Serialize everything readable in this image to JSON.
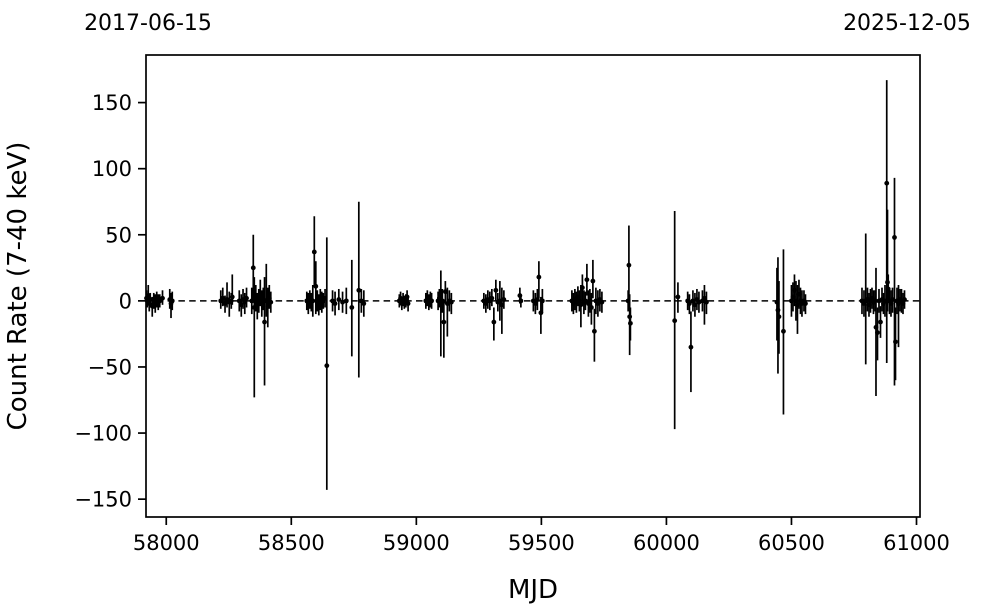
{
  "figure": {
    "background_color": "#ffffff",
    "foreground_color": "#000000"
  },
  "chart_data": {
    "type": "scatter",
    "subtype": "errorbar-lightcurve",
    "title_left": "2017-06-15",
    "title_right": "2025-12-05",
    "xlabel": "MJD",
    "ylabel": "Count Rate (7-40 keV)",
    "xlim": [
      57919,
      61014
    ],
    "ylim": [
      -163.5,
      186
    ],
    "xticks": [
      58000,
      58500,
      59000,
      59500,
      60000,
      60500,
      61000
    ],
    "yticks": [
      150,
      100,
      50,
      0,
      -50,
      -100,
      -150
    ],
    "grid": false,
    "legend_position": "none",
    "marker": {
      "shape": "circle",
      "color": "#000000"
    },
    "errorbar_color": "#000000",
    "zero_line": {
      "y": 0,
      "style": "dashed",
      "color": "#000000"
    },
    "points_format": [
      "mjd",
      "rate",
      "err_low",
      "err_high"
    ],
    "points": [
      [
        57921,
        2,
        -4,
        8
      ],
      [
        57924,
        0,
        -5,
        5
      ],
      [
        57928,
        4,
        -2,
        12
      ],
      [
        57932,
        -2,
        -8,
        4
      ],
      [
        57936,
        1,
        -4,
        6
      ],
      [
        57944,
        -4,
        -12,
        3
      ],
      [
        57950,
        0,
        -6,
        6
      ],
      [
        57956,
        -2,
        -9,
        5
      ],
      [
        57962,
        1,
        -5,
        7
      ],
      [
        57968,
        -1,
        -7,
        5
      ],
      [
        57974,
        0,
        -5,
        5
      ],
      [
        57985,
        2,
        -3,
        8
      ],
      [
        58014,
        1,
        -6,
        9
      ],
      [
        58019,
        -2,
        -13,
        6
      ],
      [
        58024,
        0,
        -7,
        7
      ],
      [
        58218,
        0,
        -6,
        8
      ],
      [
        58226,
        2,
        -4,
        10
      ],
      [
        58235,
        -2,
        -9,
        4
      ],
      [
        58243,
        1,
        -5,
        14
      ],
      [
        58252,
        -1,
        -12,
        7
      ],
      [
        58260,
        0,
        -6,
        6
      ],
      [
        58264,
        3,
        -3,
        20
      ],
      [
        58292,
        0,
        -8,
        8
      ],
      [
        58300,
        -3,
        -12,
        5
      ],
      [
        58307,
        1,
        -6,
        9
      ],
      [
        58314,
        -1,
        -10,
        6
      ],
      [
        58321,
        2,
        -5,
        10
      ],
      [
        58342,
        0,
        -10,
        10
      ],
      [
        58348,
        25,
        0,
        50
      ],
      [
        58352,
        -5,
        -73,
        18
      ],
      [
        58358,
        2,
        -8,
        12
      ],
      [
        58364,
        -3,
        -14,
        6
      ],
      [
        58370,
        0,
        -9,
        9
      ],
      [
        58376,
        4,
        -4,
        16
      ],
      [
        58382,
        -2,
        -12,
        8
      ],
      [
        58388,
        1,
        -7,
        10
      ],
      [
        58393,
        -16,
        -64,
        18
      ],
      [
        58400,
        0,
        -12,
        28
      ],
      [
        58406,
        -4,
        -20,
        10
      ],
      [
        58412,
        2,
        -6,
        12
      ],
      [
        58418,
        -1,
        -9,
        7
      ],
      [
        58562,
        0,
        -7,
        7
      ],
      [
        58568,
        -2,
        -10,
        6
      ],
      [
        58574,
        1,
        -6,
        8
      ],
      [
        58580,
        -1,
        -8,
        6
      ],
      [
        58586,
        0,
        -12,
        12
      ],
      [
        58592,
        37,
        11,
        64
      ],
      [
        58598,
        11,
        -10,
        30
      ],
      [
        58604,
        0,
        -8,
        8
      ],
      [
        58610,
        -3,
        -11,
        5
      ],
      [
        58616,
        1,
        -7,
        9
      ],
      [
        58622,
        -1,
        -9,
        7
      ],
      [
        58628,
        0,
        -6,
        6
      ],
      [
        58635,
        2,
        -5,
        9
      ],
      [
        58642,
        -49,
        -143,
        48
      ],
      [
        58665,
        0,
        -8,
        8
      ],
      [
        58675,
        -2,
        -11,
        7
      ],
      [
        58690,
        1,
        -7,
        9
      ],
      [
        58705,
        -1,
        -9,
        7
      ],
      [
        58720,
        0,
        -10,
        10
      ],
      [
        58742,
        -5,
        -42,
        31
      ],
      [
        58770,
        8,
        -58,
        75
      ],
      [
        58780,
        0,
        -9,
        9
      ],
      [
        58790,
        -2,
        -12,
        8
      ],
      [
        58932,
        0,
        -5,
        5
      ],
      [
        58937,
        2,
        -3,
        7
      ],
      [
        58942,
        -2,
        -7,
        3
      ],
      [
        58947,
        1,
        -4,
        6
      ],
      [
        58952,
        -1,
        -6,
        4
      ],
      [
        58958,
        0,
        -5,
        5
      ],
      [
        58963,
        3,
        -2,
        8
      ],
      [
        58967,
        -2,
        -8,
        4
      ],
      [
        59038,
        0,
        -6,
        6
      ],
      [
        59044,
        2,
        -4,
        8
      ],
      [
        59050,
        -1,
        -7,
        5
      ],
      [
        59056,
        1,
        -5,
        7
      ],
      [
        59061,
        0,
        -6,
        6
      ],
      [
        59087,
        0,
        -7,
        7
      ],
      [
        59092,
        2,
        -5,
        9
      ],
      [
        59098,
        -3,
        -42,
        23
      ],
      [
        59104,
        0,
        -9,
        9
      ],
      [
        59110,
        -16,
        -43,
        0
      ],
      [
        59116,
        7,
        -2,
        15
      ],
      [
        59124,
        -2,
        -27,
        10
      ],
      [
        59132,
        0,
        -8,
        8
      ],
      [
        59140,
        -1,
        -10,
        6
      ],
      [
        59270,
        0,
        -6,
        6
      ],
      [
        59278,
        -2,
        -9,
        5
      ],
      [
        59286,
        1,
        -6,
        8
      ],
      [
        59294,
        0,
        -7,
        7
      ],
      [
        59302,
        2,
        -4,
        9
      ],
      [
        59310,
        -16,
        -30,
        -5
      ],
      [
        59318,
        8,
        0,
        16
      ],
      [
        59326,
        -1,
        -8,
        6
      ],
      [
        59334,
        0,
        -15,
        15
      ],
      [
        59342,
        -3,
        -25,
        10
      ],
      [
        59350,
        1,
        -6,
        8
      ],
      [
        59414,
        4,
        -2,
        10
      ],
      [
        59418,
        0,
        -5,
        5
      ],
      [
        59468,
        0,
        -8,
        8
      ],
      [
        59476,
        -2,
        -10,
        6
      ],
      [
        59484,
        1,
        -7,
        9
      ],
      [
        59490,
        18,
        2,
        30
      ],
      [
        59498,
        -9,
        -25,
        3
      ],
      [
        59504,
        0,
        -9,
        9
      ],
      [
        59622,
        0,
        -8,
        8
      ],
      [
        59628,
        -2,
        -10,
        6
      ],
      [
        59634,
        1,
        -7,
        9
      ],
      [
        59640,
        -1,
        -9,
        7
      ],
      [
        59646,
        3,
        -4,
        11
      ],
      [
        59652,
        0,
        -8,
        8
      ],
      [
        59658,
        -3,
        -20,
        12
      ],
      [
        59664,
        10,
        0,
        20
      ],
      [
        59670,
        -1,
        -10,
        8
      ],
      [
        59676,
        0,
        -7,
        7
      ],
      [
        59682,
        16,
        4,
        28
      ],
      [
        59688,
        -2,
        -12,
        8
      ],
      [
        59694,
        0,
        -9,
        9
      ],
      [
        59700,
        -5,
        -18,
        6
      ],
      [
        59706,
        15,
        2,
        31
      ],
      [
        59712,
        -23,
        -46,
        -6
      ],
      [
        59718,
        0,
        -10,
        10
      ],
      [
        59726,
        -2,
        -12,
        8
      ],
      [
        59734,
        1,
        -8,
        9
      ],
      [
        59742,
        -1,
        -9,
        7
      ],
      [
        59847,
        0,
        -8,
        8
      ],
      [
        59850,
        27,
        -5,
        57
      ],
      [
        59853,
        -12,
        -41,
        5
      ],
      [
        59856,
        -17,
        -30,
        -5
      ],
      [
        60033,
        -15,
        -97,
        68
      ],
      [
        60046,
        3,
        -9,
        14
      ],
      [
        60085,
        0,
        -7,
        7
      ],
      [
        60092,
        -2,
        -10,
        5
      ],
      [
        60098,
        -35,
        -69,
        -8
      ],
      [
        60106,
        0,
        -8,
        8
      ],
      [
        60114,
        -3,
        -12,
        6
      ],
      [
        60122,
        1,
        -7,
        9
      ],
      [
        60130,
        -1,
        -9,
        7
      ],
      [
        60144,
        0,
        -8,
        8
      ],
      [
        60152,
        2,
        -18,
        12
      ],
      [
        60160,
        -1,
        -10,
        7
      ],
      [
        60442,
        -1,
        -30,
        25
      ],
      [
        60446,
        -7,
        -55,
        33
      ],
      [
        60450,
        -12,
        -40,
        15
      ],
      [
        60468,
        -23,
        -86,
        39
      ],
      [
        60500,
        0,
        -12,
        12
      ],
      [
        60506,
        3,
        -8,
        14
      ],
      [
        60512,
        8,
        -4,
        20
      ],
      [
        60518,
        0,
        -15,
        15
      ],
      [
        60524,
        -3,
        -25,
        12
      ],
      [
        60530,
        5,
        -6,
        16
      ],
      [
        60536,
        0,
        -10,
        10
      ],
      [
        60542,
        -2,
        -12,
        8
      ],
      [
        60550,
        0,
        -8,
        8
      ],
      [
        60556,
        -2,
        -10,
        5
      ],
      [
        60782,
        0,
        -10,
        10
      ],
      [
        60790,
        -2,
        -12,
        8
      ],
      [
        60797,
        0,
        -48,
        51
      ],
      [
        60804,
        1,
        -8,
        10
      ],
      [
        60810,
        -3,
        -12,
        6
      ],
      [
        60816,
        0,
        -9,
        9
      ],
      [
        60822,
        2,
        -6,
        10
      ],
      [
        60828,
        -1,
        -10,
        8
      ],
      [
        60834,
        0,
        -8,
        8
      ],
      [
        60838,
        -20,
        -72,
        25
      ],
      [
        60844,
        -24,
        -45,
        -5
      ],
      [
        60850,
        0,
        -9,
        9
      ],
      [
        60856,
        -16,
        -28,
        -4
      ],
      [
        60862,
        1,
        -8,
        10
      ],
      [
        60868,
        -2,
        -10,
        6
      ],
      [
        60874,
        0,
        -12,
        12
      ],
      [
        60881,
        89,
        -47,
        167
      ],
      [
        60884,
        14,
        -8,
        69
      ],
      [
        60887,
        9,
        0,
        20
      ],
      [
        60892,
        0,
        -10,
        10
      ],
      [
        60898,
        -2,
        -12,
        8
      ],
      [
        60904,
        1,
        -9,
        10
      ],
      [
        60912,
        48,
        -64,
        93
      ],
      [
        60916,
        -31,
        -60,
        -5
      ],
      [
        60922,
        0,
        -10,
        10
      ],
      [
        60928,
        -2,
        -35,
        12
      ],
      [
        60934,
        1,
        -8,
        9
      ],
      [
        60940,
        0,
        -9,
        9
      ],
      [
        60946,
        -2,
        -10,
        6
      ],
      [
        60952,
        1,
        -6,
        8
      ]
    ]
  }
}
